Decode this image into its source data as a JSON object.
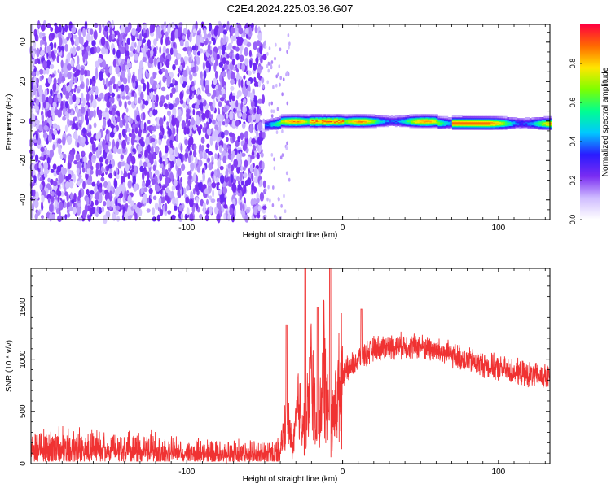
{
  "title": "C2E4.2024.225.03.36.G07",
  "chart_data": [
    {
      "type": "heatmap",
      "xlabel": "Height of straight line (km)",
      "ylabel": "Frequency (Hz)",
      "xlim": [
        -200,
        133
      ],
      "ylim": [
        -50,
        49
      ],
      "xticks": [
        -100,
        0,
        100
      ],
      "yticks": [
        -40,
        -20,
        0,
        20,
        40
      ],
      "colorbar": {
        "label": "Normalized spectral amplitude",
        "range": [
          0,
          1
        ],
        "ticks": [
          0,
          0.2,
          0.4,
          0.6,
          0.8
        ],
        "tick_labels": [
          "0.0",
          "0.2",
          "0.4",
          "0.6",
          "0.8"
        ],
        "colors": [
          "#ffffff",
          "#cfbcff",
          "#7a2cf2",
          "#2a1bff",
          "#00c8ff",
          "#00ff90",
          "#7dff00",
          "#ffe600",
          "#ff6a00",
          "#ff0040"
        ]
      },
      "regions": [
        {
          "name": "noise",
          "x_range": [
            -200,
            -50
          ],
          "freq_range": [
            -50,
            49
          ],
          "amplitude": [
            0.0,
            0.25
          ]
        },
        {
          "name": "signal",
          "x_range": [
            -50,
            133
          ],
          "freq_center": 0,
          "freq_halfwidth": 3,
          "amplitude": [
            0.3,
            1.0
          ]
        }
      ]
    },
    {
      "type": "line",
      "xlabel": "Height of straight line (km)",
      "ylabel": "SNR (10 * v/v)",
      "xlim": [
        -200,
        133
      ],
      "ylim": [
        0,
        1870
      ],
      "xticks": [
        -100,
        0,
        100
      ],
      "yticks": [
        0,
        500,
        1000,
        1500
      ],
      "color": "#f03232",
      "trend": {
        "x": [
          -200,
          -180,
          -160,
          -140,
          -120,
          -100,
          -80,
          -60,
          -50,
          -40,
          -36,
          -32,
          -28,
          -24,
          -20,
          -16,
          -12,
          -8,
          -4,
          0,
          10,
          20,
          30,
          40,
          50,
          60,
          70,
          80,
          90,
          100,
          110,
          120,
          133
        ],
        "y": [
          180,
          190,
          185,
          170,
          160,
          140,
          130,
          120,
          125,
          130,
          450,
          150,
          600,
          280,
          900,
          180,
          1000,
          300,
          600,
          850,
          1000,
          1100,
          1120,
          1130,
          1120,
          1080,
          1040,
          990,
          950,
          910,
          880,
          850,
          820
        ]
      },
      "spikes": [
        {
          "x": -36,
          "y": 1330
        },
        {
          "x": -24,
          "y": 1870
        },
        {
          "x": -16,
          "y": 1500
        },
        {
          "x": -8,
          "y": 1870
        },
        {
          "x": 12,
          "y": 1480
        }
      ]
    }
  ]
}
